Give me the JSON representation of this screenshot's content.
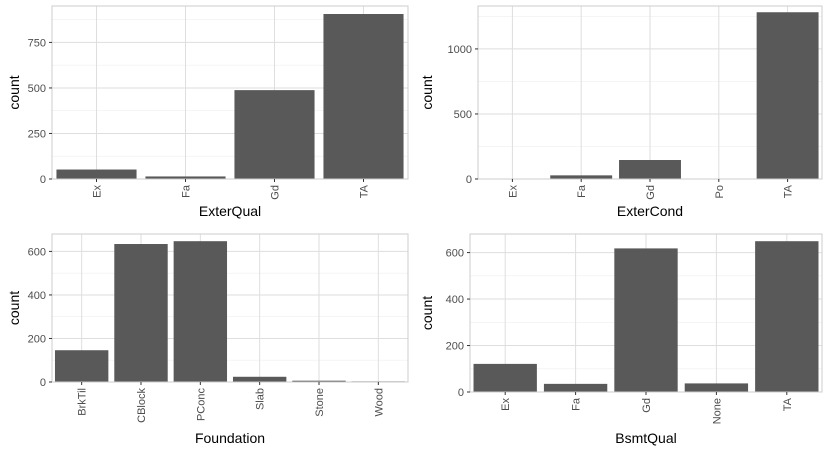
{
  "style": {
    "bar_color": "#595959",
    "grid_major": "#dedede",
    "grid_minor": "#efefef",
    "panel_border": "#cccccc",
    "background": "#ffffff"
  },
  "chart_data": [
    {
      "type": "bar",
      "xlabel": "ExterQual",
      "ylabel": "count",
      "categories": [
        "Ex",
        "Fa",
        "Gd",
        "TA"
      ],
      "values": [
        52,
        14,
        488,
        906
      ],
      "ylim": [
        0,
        950
      ],
      "yticks": [
        0,
        250,
        500,
        750
      ],
      "grid": true
    },
    {
      "type": "bar",
      "xlabel": "ExterCond",
      "ylabel": "count",
      "categories": [
        "Ex",
        "Fa",
        "Gd",
        "Po",
        "TA"
      ],
      "values": [
        3,
        28,
        146,
        1,
        1282
      ],
      "ylim": [
        0,
        1330
      ],
      "yticks": [
        0,
        500,
        1000
      ],
      "grid": true
    },
    {
      "type": "bar",
      "xlabel": "Foundation",
      "ylabel": "count",
      "categories": [
        "BrkTil",
        "CBlock",
        "PConc",
        "Slab",
        "Stone",
        "Wood"
      ],
      "values": [
        146,
        634,
        647,
        24,
        6,
        3
      ],
      "ylim": [
        0,
        680
      ],
      "yticks": [
        0,
        200,
        400,
        600
      ],
      "grid": true
    },
    {
      "type": "bar",
      "xlabel": "BsmtQual",
      "ylabel": "count",
      "categories": [
        "Ex",
        "Fa",
        "Gd",
        "None",
        "TA"
      ],
      "values": [
        121,
        35,
        618,
        37,
        649
      ],
      "ylim": [
        0,
        680
      ],
      "yticks": [
        0,
        200,
        400,
        600
      ],
      "grid": true
    }
  ]
}
